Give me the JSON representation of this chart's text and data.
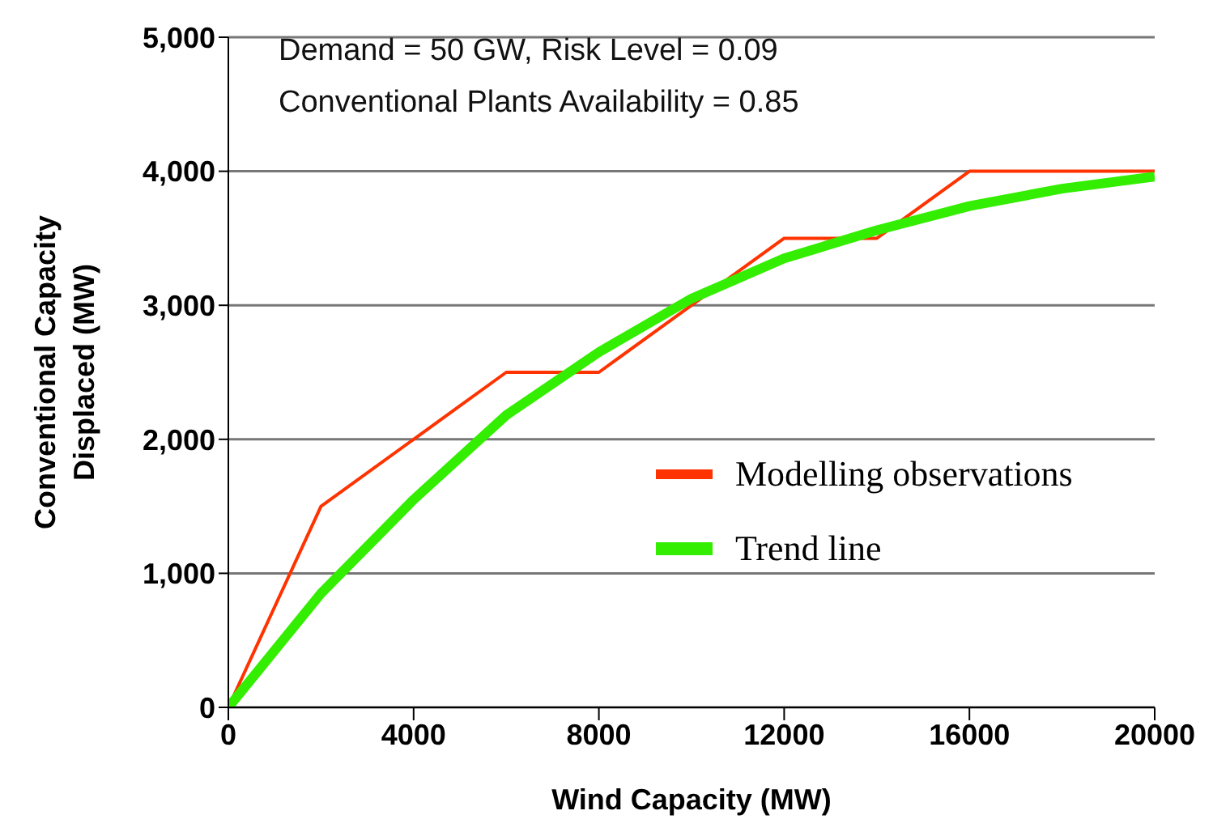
{
  "chart_data": {
    "type": "line",
    "xlabel": "Wind Capacity (MW)",
    "ylabel": "Conventional Capacity Displaced (MW)",
    "annotations": [
      "Demand = 50 GW, Risk Level = 0.09",
      "Conventional Plants Availability = 0.85"
    ],
    "xlim": [
      0,
      20000
    ],
    "xticks": [
      0,
      4000,
      8000,
      12000,
      16000,
      20000
    ],
    "ylim": [
      0,
      5000
    ],
    "yticks": [
      0,
      {
        "value": 1000,
        "label": "1,000"
      },
      {
        "value": 2000,
        "label": "2,000"
      },
      {
        "value": 3000,
        "label": "3,000"
      },
      {
        "value": 4000,
        "label": "4,000"
      },
      {
        "value": 5000,
        "label": "5,000"
      }
    ],
    "grid": "y",
    "legend": "right",
    "marker": "none",
    "series": [
      {
        "name": "Modelling observations",
        "color": "#ff3300",
        "x": [
          0,
          2000,
          4000,
          6000,
          8000,
          12000,
          14000,
          16000,
          20000
        ],
        "values": [
          0,
          1500,
          2000,
          2500,
          2500,
          3500,
          3500,
          4000,
          4000
        ]
      },
      {
        "name": "Trend line",
        "type": "line",
        "color": "#33ee00",
        "x": [
          0,
          2000,
          4000,
          6000,
          8000,
          10000,
          12000,
          14000,
          16000,
          18000,
          20000
        ],
        "values": [
          0,
          850,
          1550,
          2180,
          2650,
          3050,
          3350,
          3560,
          3740,
          3870,
          3960
        ]
      }
    ]
  }
}
